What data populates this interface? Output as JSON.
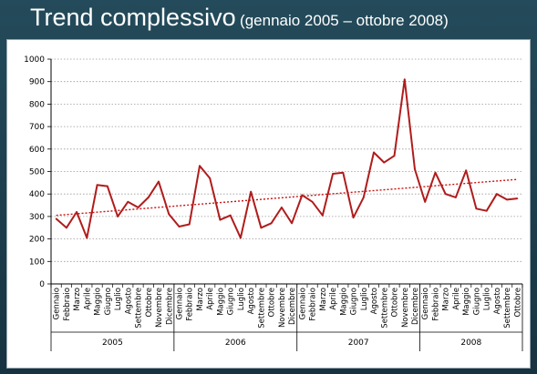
{
  "slide": {
    "title": "Trend complessivo",
    "subtitle": "(gennaio 2005 – ottobre 2008)"
  },
  "chart_data": {
    "type": "line",
    "title": "Trend complessivo",
    "subtitle": "(gennaio 2005 – ottobre 2008)",
    "xlabel": "",
    "ylabel": "",
    "ylim": [
      0,
      1000
    ],
    "y_ticks": [
      0,
      100,
      200,
      300,
      400,
      500,
      600,
      700,
      800,
      900,
      1000
    ],
    "grid": "horizontal dotted",
    "legend": "none",
    "categories": [
      "Gennaio",
      "Febbraio",
      "Marzo",
      "Aprile",
      "Maggio",
      "Giugno",
      "Luglio",
      "Agosto",
      "Settembre",
      "Ottobre",
      "Novembre",
      "Dicembre",
      "Gennaio",
      "Febbraio",
      "Marzo",
      "Aprile",
      "Maggio",
      "Giugno",
      "Luglio",
      "Agosto",
      "Settembre",
      "Ottobre",
      "Novembre",
      "Dicembre",
      "Gennaio",
      "Febbraio",
      "Marzo",
      "Aprile",
      "Maggio",
      "Giugno",
      "Luglio",
      "Agosto",
      "Settembre",
      "Ottobre",
      "Novembre",
      "Dicembre",
      "Gennaio",
      "Febbraio",
      "Marzo",
      "Aprile",
      "Maggio",
      "Giugno",
      "Luglio",
      "Agosto",
      "Settembre",
      "Ottobre"
    ],
    "year_groups": [
      {
        "label": "2005",
        "months": 12
      },
      {
        "label": "2006",
        "months": 12
      },
      {
        "label": "2007",
        "months": 12
      },
      {
        "label": "2008",
        "months": 10
      }
    ],
    "series": [
      {
        "values": [
          290,
          250,
          320,
          205,
          440,
          435,
          300,
          365,
          340,
          385,
          455,
          310,
          255,
          265,
          525,
          470,
          285,
          305,
          205,
          410,
          250,
          270,
          340,
          270,
          395,
          365,
          305,
          490,
          495,
          295,
          385,
          585,
          540,
          570,
          910,
          510,
          365,
          495,
          400,
          385,
          505,
          335,
          325,
          400,
          375,
          380
        ],
        "color": "#b01c1c"
      }
    ],
    "trendline": {
      "type": "linear",
      "start": 305,
      "end": 465,
      "color": "#cc1111",
      "style": "dotted"
    },
    "colors": {
      "line": "#b01c1c",
      "grid": "#999999",
      "axis": "#000000",
      "background": "#1f3e4d"
    }
  }
}
